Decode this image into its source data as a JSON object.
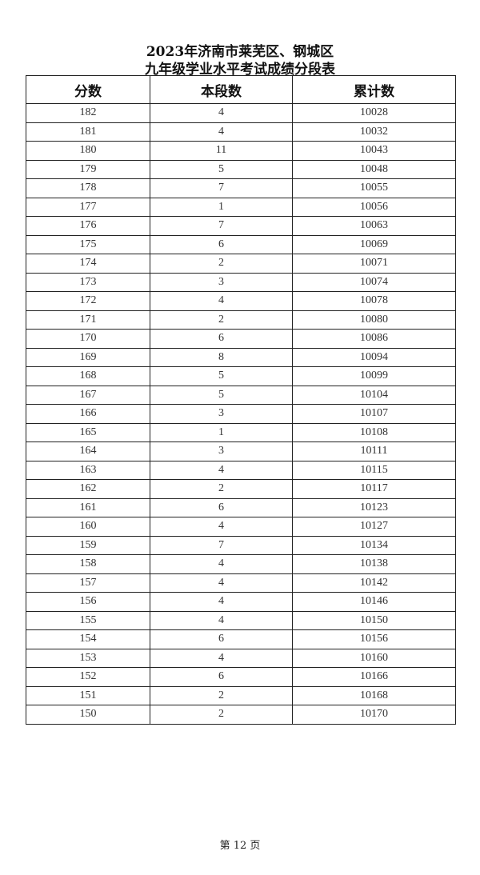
{
  "title_line1": "2023年济南市莱芜区、钢城区",
  "title_line2": "九年级学业水平考试成绩分段表",
  "headers": [
    "分数",
    "本段数",
    "累计数"
  ],
  "rows": [
    [
      "182",
      "4",
      "10028"
    ],
    [
      "181",
      "4",
      "10032"
    ],
    [
      "180",
      "11",
      "10043"
    ],
    [
      "179",
      "5",
      "10048"
    ],
    [
      "178",
      "7",
      "10055"
    ],
    [
      "177",
      "1",
      "10056"
    ],
    [
      "176",
      "7",
      "10063"
    ],
    [
      "175",
      "6",
      "10069"
    ],
    [
      "174",
      "2",
      "10071"
    ],
    [
      "173",
      "3",
      "10074"
    ],
    [
      "172",
      "4",
      "10078"
    ],
    [
      "171",
      "2",
      "10080"
    ],
    [
      "170",
      "6",
      "10086"
    ],
    [
      "169",
      "8",
      "10094"
    ],
    [
      "168",
      "5",
      "10099"
    ],
    [
      "167",
      "5",
      "10104"
    ],
    [
      "166",
      "3",
      "10107"
    ],
    [
      "165",
      "1",
      "10108"
    ],
    [
      "164",
      "3",
      "10111"
    ],
    [
      "163",
      "4",
      "10115"
    ],
    [
      "162",
      "2",
      "10117"
    ],
    [
      "161",
      "6",
      "10123"
    ],
    [
      "160",
      "4",
      "10127"
    ],
    [
      "159",
      "7",
      "10134"
    ],
    [
      "158",
      "4",
      "10138"
    ],
    [
      "157",
      "4",
      "10142"
    ],
    [
      "156",
      "4",
      "10146"
    ],
    [
      "155",
      "4",
      "10150"
    ],
    [
      "154",
      "6",
      "10156"
    ],
    [
      "153",
      "4",
      "10160"
    ],
    [
      "152",
      "6",
      "10166"
    ],
    [
      "151",
      "2",
      "10168"
    ],
    [
      "150",
      "2",
      "10170"
    ]
  ],
  "footer": "第 12 页"
}
